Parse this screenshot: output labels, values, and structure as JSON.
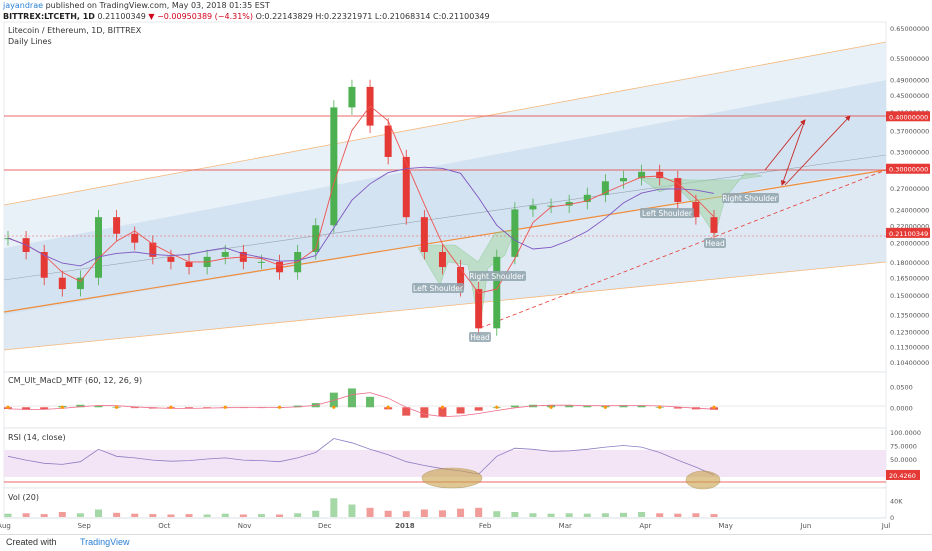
{
  "header": {
    "author": "jayandrae",
    "published": "published on TradingView.com, May 03, 2018 01:35 EST",
    "symbol": "BITTREX:LTCETH, 1D",
    "price": "0.21100349",
    "change": "▼ −0.00950389 (−4.31%)",
    "ohlc": "O:0.22143829 H:0.22321971 L:0.21068314 C:0.21100349"
  },
  "colors": {
    "up": "#4caf50",
    "down": "#e53935",
    "channel_fill": "#d6e4f2",
    "channel_line": "#f5b77a",
    "level_line": "#e53935",
    "ma_fast": "#ef5350",
    "ma_slow": "#7e57c2",
    "pattern_fill": "#a5d6a7",
    "rsi_band": "#f3e5f5",
    "highlight": "#c9a24a",
    "price_tag": "#e53935"
  },
  "main_pane": {
    "title": "Litecoin / Ethereum, 1D, BITTREX",
    "subtitle": "Daily Lines",
    "price_label": "0.21100349"
  },
  "annotations": {
    "ls1": "Left Shoulder",
    "head1": "Head",
    "rs1": "Right Shoulder",
    "ls2": "Left Shoulder",
    "head2": "Head",
    "rs2": "Right Shoulder"
  },
  "macd_pane": {
    "title": "CM_Ult_MacD_MTF (60, 12, 26, 9)"
  },
  "rsi_pane": {
    "title": "RSI (14, close)",
    "value_label": "20.4260"
  },
  "vol_pane": {
    "title": "Vol (20)"
  },
  "footer": {
    "created": "Created with",
    "brand": "TradingView"
  },
  "chart_data": [
    {
      "type": "candlestick",
      "title": "Litecoin / Ethereum, 1D, BITTREX",
      "y_axis_labels": [
        "0.65000000",
        "0.55000000",
        "0.49000000",
        "0.45000000",
        "0.41000000",
        "0.37000000",
        "0.33000000",
        "0.27000000",
        "0.24000000",
        "0.22000000",
        "0.20000000",
        "0.18000000",
        "0.16500000",
        "0.15000000",
        "0.13500000",
        "0.12300000",
        "0.11300000",
        "0.10400000"
      ],
      "x_axis_labels": [
        "Aug",
        "Sep",
        "Oct",
        "Nov",
        "Dec",
        "2018",
        "Feb",
        "Mar",
        "Apr",
        "May",
        "Jun",
        "Jul"
      ],
      "y_scale": "log",
      "ylim": [
        0.1,
        0.66
      ],
      "horizontal_levels": [
        0.4,
        0.3
      ],
      "price_tags": [
        "0.40000000",
        "0.30000000",
        "0.21100349"
      ],
      "last_close": 0.21100349,
      "series": [
        {
          "name": "LTCETH close (approx. weekly)",
          "x": [
            "2017-08-01",
            "2017-08-08",
            "2017-08-15",
            "2017-08-22",
            "2017-08-29",
            "2017-09-05",
            "2017-09-12",
            "2017-09-19",
            "2017-09-26",
            "2017-10-03",
            "2017-10-10",
            "2017-10-17",
            "2017-10-24",
            "2017-10-31",
            "2017-11-07",
            "2017-11-14",
            "2017-11-21",
            "2017-11-28",
            "2017-12-05",
            "2017-12-12",
            "2017-12-19",
            "2017-12-26",
            "2018-01-02",
            "2018-01-09",
            "2018-01-16",
            "2018-01-23",
            "2018-01-30",
            "2018-02-06",
            "2018-02-13",
            "2018-02-20",
            "2018-02-27",
            "2018-03-06",
            "2018-03-13",
            "2018-03-20",
            "2018-03-27",
            "2018-04-03",
            "2018-04-10",
            "2018-04-17",
            "2018-04-24",
            "2018-05-01"
          ],
          "values": [
            0.205,
            0.19,
            0.165,
            0.155,
            0.165,
            0.23,
            0.21,
            0.2,
            0.185,
            0.18,
            0.175,
            0.185,
            0.19,
            0.18,
            0.18,
            0.17,
            0.19,
            0.22,
            0.42,
            0.47,
            0.38,
            0.32,
            0.23,
            0.19,
            0.175,
            0.155,
            0.125,
            0.185,
            0.24,
            0.245,
            0.245,
            0.25,
            0.26,
            0.28,
            0.285,
            0.295,
            0.285,
            0.25,
            0.23,
            0.211
          ]
        }
      ]
    },
    {
      "type": "bar",
      "title": "CM_Ult_MacD_MTF (60, 12, 26, 9)",
      "y_axis_labels": [
        "0.0500",
        "0.0000"
      ],
      "ylim": [
        -0.04,
        0.07
      ],
      "series": [
        {
          "name": "histogram",
          "values": [
            -0.004,
            -0.006,
            -0.005,
            0.003,
            0.006,
            0.004,
            0.001,
            -0.002,
            -0.003,
            -0.003,
            -0.002,
            -0.001,
            0.0,
            -0.001,
            -0.001,
            0.0,
            0.004,
            0.01,
            0.035,
            0.045,
            0.025,
            -0.005,
            -0.02,
            -0.025,
            -0.022,
            -0.015,
            -0.008,
            0.0,
            0.004,
            0.006,
            0.005,
            0.004,
            0.003,
            0.004,
            0.005,
            0.004,
            0.001,
            -0.003,
            -0.005,
            -0.006
          ]
        }
      ]
    },
    {
      "type": "line",
      "title": "RSI (14, close)",
      "y_axis_labels": [
        "100.0000",
        "75.0000",
        "50.0000",
        "20.4260"
      ],
      "ylim": [
        0,
        100
      ],
      "series": [
        {
          "name": "RSI",
          "values": [
            55,
            48,
            42,
            40,
            45,
            68,
            55,
            52,
            48,
            46,
            47,
            50,
            52,
            48,
            47,
            45,
            52,
            62,
            88,
            80,
            68,
            58,
            45,
            38,
            32,
            28,
            22,
            55,
            70,
            68,
            64,
            65,
            68,
            72,
            75,
            72,
            62,
            48,
            35,
            20.43
          ]
        }
      ]
    },
    {
      "type": "bar",
      "title": "Vol (20)",
      "y_axis_labels": [
        "40K",
        "0"
      ],
      "ylim": [
        0,
        60000
      ],
      "series": [
        {
          "name": "volume",
          "values": [
            8000,
            9000,
            7000,
            12000,
            9000,
            18000,
            10000,
            8000,
            7000,
            6000,
            7000,
            6000,
            8000,
            6000,
            7000,
            6000,
            9000,
            15000,
            45000,
            30000,
            22000,
            15000,
            14000,
            18000,
            16000,
            20000,
            22000,
            14000,
            12000,
            9000,
            8000,
            9000,
            8000,
            9000,
            10000,
            12000,
            9000,
            8000,
            9000,
            7000
          ]
        }
      ]
    }
  ]
}
